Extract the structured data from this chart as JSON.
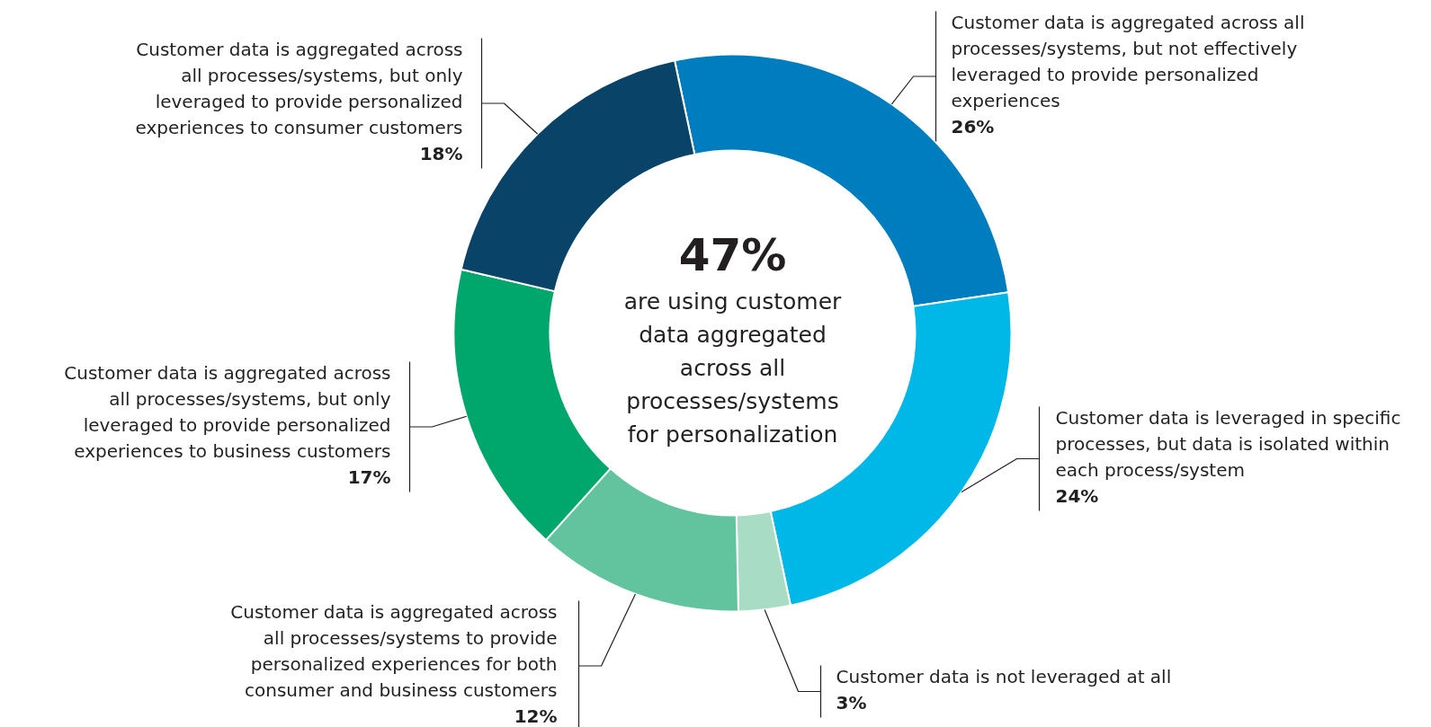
{
  "chart_data": {
    "type": "donut",
    "categories": [
      "Customer data is aggregated across all processes/systems, but not effectively leveraged to provide personalized experiences",
      "Customer data is leveraged in specific processes, but data is isolated within each process/system",
      "Customer data is not leveraged at all",
      "Customer data is aggregated across all processes/systems to provide personalized experiences for both consumer and business customers",
      "Customer data is aggregated across all processes/systems, but only leveraged to provide personalized experiences to business customers",
      "Customer data is aggregated across all processes/systems, but only leveraged to provide personalized experiences to consumer customers"
    ],
    "values": [
      26,
      24,
      3,
      12,
      17,
      18
    ],
    "colors": [
      "#007dbf",
      "#00b8e8",
      "#a8dcc5",
      "#62c49e",
      "#00a76c",
      "#0a4368"
    ],
    "value_labels": [
      "26%",
      "24%",
      "3%",
      "12%",
      "17%",
      "18%"
    ],
    "annotations": [
      "47%",
      "are using customer data aggregated across all processes/systems for personalization"
    ]
  }
}
